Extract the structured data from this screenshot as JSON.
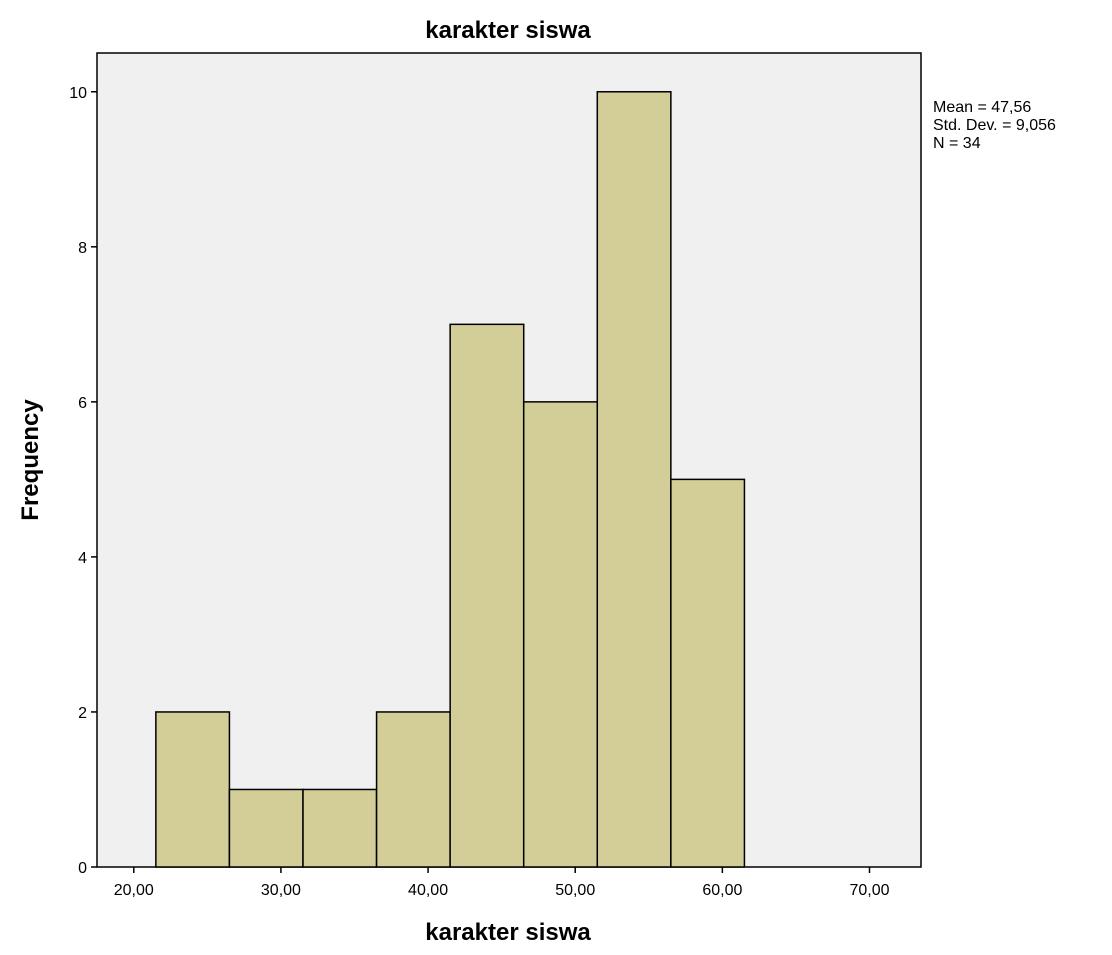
{
  "chart_data": {
    "type": "bar",
    "title": "karakter siswa",
    "xlabel": "karakter siswa",
    "ylabel": "Frequency",
    "bins": [
      {
        "start": 21.5,
        "end": 26.5,
        "count": 2
      },
      {
        "start": 26.5,
        "end": 31.5,
        "count": 1
      },
      {
        "start": 31.5,
        "end": 36.5,
        "count": 1
      },
      {
        "start": 36.5,
        "end": 41.5,
        "count": 2
      },
      {
        "start": 41.5,
        "end": 46.5,
        "count": 7
      },
      {
        "start": 46.5,
        "end": 51.5,
        "count": 6
      },
      {
        "start": 51.5,
        "end": 56.5,
        "count": 10
      },
      {
        "start": 56.5,
        "end": 61.5,
        "count": 5
      }
    ],
    "xlim": [
      17.5,
      73.5
    ],
    "ylim": [
      0,
      10.5
    ],
    "x_ticks": [
      {
        "value": 20,
        "label": "20,00"
      },
      {
        "value": 30,
        "label": "30,00"
      },
      {
        "value": 40,
        "label": "40,00"
      },
      {
        "value": 50,
        "label": "50,00"
      },
      {
        "value": 60,
        "label": "60,00"
      },
      {
        "value": 70,
        "label": "70,00"
      }
    ],
    "y_ticks": [
      {
        "value": 0,
        "label": "0"
      },
      {
        "value": 2,
        "label": "2"
      },
      {
        "value": 4,
        "label": "4"
      },
      {
        "value": 6,
        "label": "6"
      },
      {
        "value": 8,
        "label": "8"
      },
      {
        "value": 10,
        "label": "10"
      }
    ],
    "statistics": [
      "Mean = 47,56",
      "Std. Dev. = 9,056",
      "N = 34"
    ],
    "colors": {
      "bar": "#d3ce98",
      "plot_background": "#f0f0f0",
      "outline": "#000000"
    },
    "grid": false
  }
}
